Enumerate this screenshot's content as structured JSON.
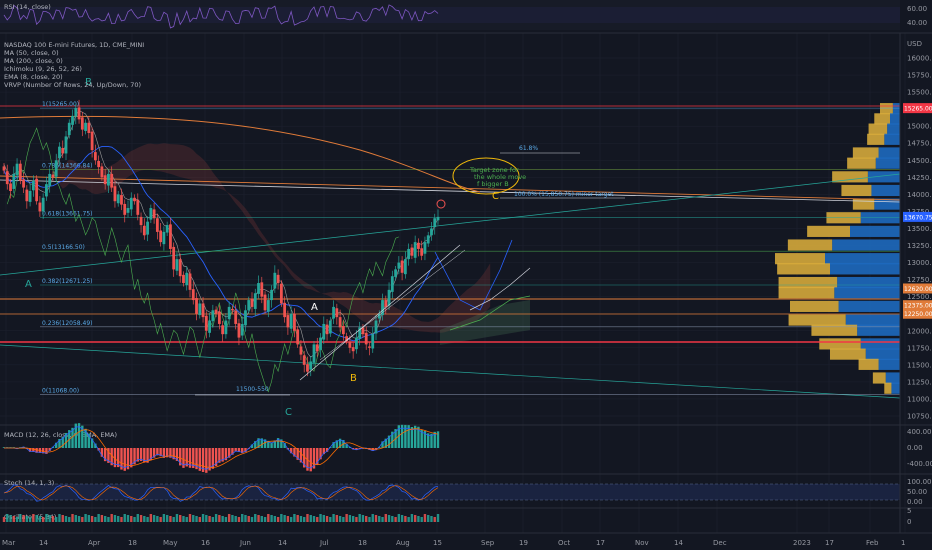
{
  "colors": {
    "background": "#131722",
    "grid": "#1e2230",
    "bull": "#26a69a",
    "bear": "#ef5350",
    "accent": "#2962ff",
    "fib": "#5aa9e6",
    "wave_teal": "#26a69a",
    "wave_yellow": "#f0b90b",
    "red_line": "#f23645",
    "orange_line": "#e07b39",
    "volume_profile_up": "#1e6fc7",
    "volume_profile_down": "#e0b23c"
  },
  "indicators": {
    "rsi_label": "RSI (14, close)",
    "main_title": "NASDAQ 100 E-mini Futures, 1D, CME_MINI",
    "main_lines": [
      "MA (50, close, 0)",
      "MA (200, close, 0)",
      "Ichimoku (9, 26, 52, 26)",
      "EMA (8, close, 20)",
      "VRVP (Number Of Rows, 24, Up/Down, 70)"
    ],
    "macd_label": "MACD (12, 26, close, 9, EMA, EMA)",
    "stoch_label": "Stoch (14, 1, 3)",
    "oscillator_label": "Oscillator (5,34)"
  },
  "currency": "USD",
  "annotations": {
    "target_note": "Target zone for the whole move of bigger B",
    "fib_extension": "61.8%",
    "target_line_label": "100.0% (15,850.75) minor target",
    "support_label": "11500-550"
  },
  "chart_data": [
    {
      "type": "candlestick",
      "title": "NASDAQ 100 E-mini Futures, 1D, CME_MINI",
      "ylim": [
        10750,
        16250
      ],
      "x_ticks": [
        "Mar",
        "14",
        "Apr",
        "18",
        "May",
        "16",
        "Jun",
        "14",
        "Jul",
        "18",
        "Aug",
        "15",
        "Sep",
        "19",
        "Oct",
        "17",
        "Nov",
        "14",
        "Dec",
        "2023",
        "17",
        "Feb",
        "1"
      ],
      "y_ticks": [
        16000,
        15750,
        15500,
        15250,
        15000,
        14750,
        14500,
        14250,
        14000,
        13750,
        13500,
        13250,
        13000,
        12750,
        12500,
        12250,
        12000,
        11750,
        11500,
        11250,
        11000,
        10750
      ],
      "price_tags": [
        {
          "value": "15265.00",
          "price": 15265,
          "color": "#f23645"
        },
        {
          "value": "13670.75",
          "price": 13670,
          "color": "#2962ff"
        },
        {
          "value": "12620.00",
          "price": 12620,
          "color": "#e07b39"
        },
        {
          "value": "12375.00",
          "price": 12375,
          "color": "#e07b39"
        },
        {
          "value": "12250.00",
          "price": 12250,
          "color": "#e07b39"
        }
      ],
      "closes": [
        14350,
        14150,
        14050,
        14300,
        14450,
        14200,
        14100,
        13900,
        14050,
        14200,
        13900,
        13750,
        13950,
        14150,
        14300,
        14250,
        14500,
        14700,
        14600,
        14850,
        15050,
        15150,
        15265,
        15100,
        14950,
        15050,
        14900,
        14650,
        14500,
        14400,
        14250,
        14150,
        14300,
        14100,
        13900,
        14000,
        13850,
        13700,
        13800,
        13950,
        13900,
        13700,
        13550,
        13400,
        13600,
        13800,
        13650,
        13450,
        13300,
        13450,
        13550,
        13200,
        12900,
        13050,
        12800,
        12700,
        12850,
        12600,
        12450,
        12250,
        12400,
        12200,
        12000,
        12150,
        12300,
        12250,
        12100,
        11950,
        12150,
        12350,
        12300,
        12100,
        11900,
        12100,
        12300,
        12450,
        12350,
        12550,
        12700,
        12500,
        12300,
        12450,
        12600,
        12850,
        12700,
        12400,
        12200,
        12050,
        12250,
        12000,
        11800,
        11650,
        11500,
        11400,
        11550,
        11800,
        11700,
        11900,
        12100,
        11950,
        12150,
        12350,
        12200,
        12050,
        11950,
        11850,
        11750,
        11700,
        11900,
        12050,
        11950,
        11800,
        11750,
        11950,
        12150,
        12250,
        12450,
        12350,
        12600,
        12800,
        12900,
        13000,
        12850,
        13050,
        13200,
        13100,
        13300,
        13200,
        13100,
        13300,
        13400,
        13500,
        13650,
        13670
      ]
    },
    {
      "type": "bar",
      "title": "Volume profile (VRVP)",
      "price_levels": [
        15250,
        15100,
        14950,
        14800,
        14600,
        14450,
        14250,
        14050,
        13850,
        13650,
        13450,
        13250,
        13050,
        12900,
        12700,
        12550,
        12350,
        12150,
        12000,
        11800,
        11650,
        11500,
        11300,
        11150
      ],
      "up_volume": [
        10,
        14,
        18,
        22,
        30,
        34,
        45,
        40,
        36,
        55,
        70,
        95,
        105,
        98,
        88,
        92,
        86,
        76,
        60,
        55,
        48,
        30,
        20,
        12
      ],
      "down_volume": [
        18,
        22,
        26,
        24,
        36,
        40,
        50,
        42,
        30,
        48,
        60,
        62,
        70,
        74,
        82,
        78,
        68,
        80,
        64,
        58,
        50,
        28,
        18,
        10
      ]
    }
  ]
}
